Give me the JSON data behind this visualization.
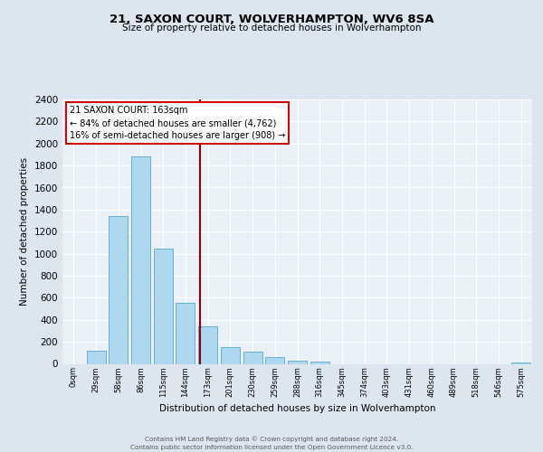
{
  "title": "21, SAXON COURT, WOLVERHAMPTON, WV6 8SA",
  "subtitle": "Size of property relative to detached houses in Wolverhampton",
  "xlabel": "Distribution of detached houses by size in Wolverhampton",
  "ylabel": "Number of detached properties",
  "bar_labels": [
    "0sqm",
    "29sqm",
    "58sqm",
    "86sqm",
    "115sqm",
    "144sqm",
    "173sqm",
    "201sqm",
    "230sqm",
    "259sqm",
    "288sqm",
    "316sqm",
    "345sqm",
    "374sqm",
    "403sqm",
    "431sqm",
    "460sqm",
    "489sqm",
    "518sqm",
    "546sqm",
    "575sqm"
  ],
  "bar_values": [
    0,
    120,
    1340,
    1880,
    1050,
    550,
    340,
    150,
    110,
    60,
    30,
    20,
    0,
    0,
    0,
    0,
    0,
    0,
    0,
    0,
    10
  ],
  "bar_color": "#add8f0",
  "bar_edge_color": "#6aaed6",
  "vline_color": "#8b0000",
  "annotation_title": "21 SAXON COURT: 163sqm",
  "annotation_line1": "← 84% of detached houses are smaller (4,762)",
  "annotation_line2": "16% of semi-detached houses are larger (908) →",
  "annotation_box_color": "#cc0000",
  "ylim": [
    0,
    2400
  ],
  "yticks": [
    0,
    200,
    400,
    600,
    800,
    1000,
    1200,
    1400,
    1600,
    1800,
    2000,
    2200,
    2400
  ],
  "bg_color": "#dce6f0",
  "plot_bg_color": "#e8f0f8",
  "footer_line1": "Contains HM Land Registry data © Crown copyright and database right 2024.",
  "footer_line2": "Contains public sector information licensed under the Open Government Licence v3.0."
}
